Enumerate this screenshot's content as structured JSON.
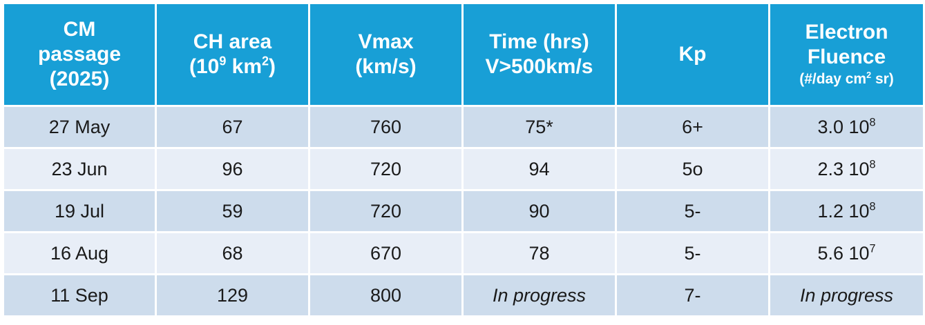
{
  "headers": {
    "col1": {
      "line1": "CM",
      "line2": "passage",
      "line3": "(2025)"
    },
    "col2": {
      "line1": "CH area",
      "open": "(10",
      "exp": "9",
      "mid": " km",
      "exp2": "2",
      "close": ")"
    },
    "col3": {
      "line1": "Vmax",
      "line2": "(km/s)"
    },
    "col4": {
      "line1": "Time (hrs)",
      "line2": "V>500km/s"
    },
    "col5": {
      "line1": "Kp"
    },
    "col6": {
      "line1": "Electron",
      "line2": "Fluence",
      "unit_pre": "(#/day cm",
      "unit_exp": "2",
      "unit_post": " sr)"
    }
  },
  "rows": [
    {
      "date": "27 May",
      "area": "67",
      "vmax": "760",
      "time": "75*",
      "kp": "6+",
      "mant": "3.0 10",
      "exp": "8"
    },
    {
      "date": "23 Jun",
      "area": "96",
      "vmax": "720",
      "time": "94",
      "kp": "5o",
      "mant": "2.3 10",
      "exp": "8"
    },
    {
      "date": "19 Jul",
      "area": "59",
      "vmax": "720",
      "time": "90",
      "kp": "5-",
      "mant": "1.2 10",
      "exp": "8"
    },
    {
      "date": "16 Aug",
      "area": "68",
      "vmax": "670",
      "time": "78",
      "kp": "5-",
      "mant": "5.6 10",
      "exp": "7"
    },
    {
      "date": "11 Sep",
      "area": "129",
      "vmax": "800",
      "time": "In progress",
      "kp": "7-",
      "fluence_text": "In progress"
    }
  ],
  "colors": {
    "header_bg": "#189fd6",
    "row_odd": "#cddcec",
    "row_even": "#e8eef7"
  }
}
